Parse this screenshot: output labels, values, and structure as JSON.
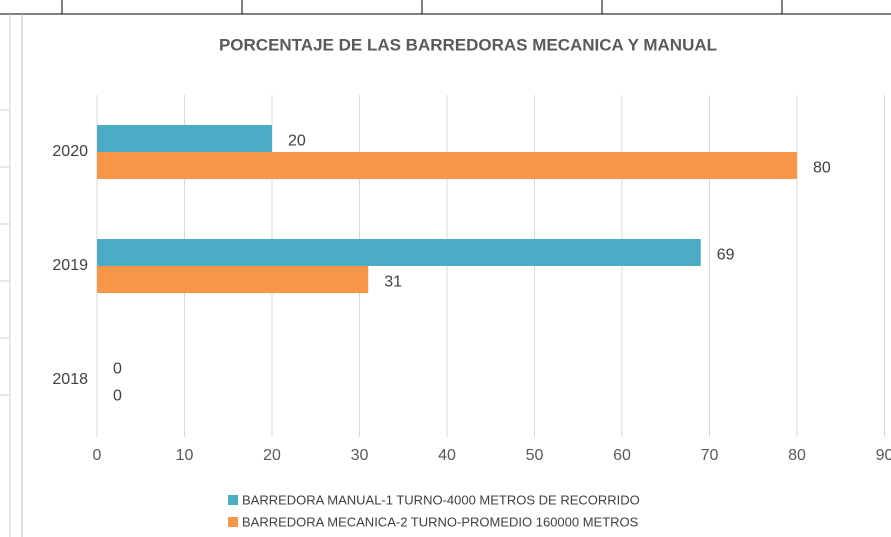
{
  "chart_data": {
    "type": "bar",
    "orientation": "horizontal",
    "title": "PORCENTAJE DE LAS BARREDORAS MECANICA Y MANUAL",
    "categories": [
      "2018",
      "2019",
      "2020"
    ],
    "series": [
      {
        "name": "BARREDORA MANUAL-1 TURNO-4000 METROS DE RECORRIDO",
        "color": "#4bacc6",
        "values": [
          0,
          69,
          20
        ]
      },
      {
        "name": "BARREDORA MECANICA-2 TURNO-PROMEDIO 160000 METROS",
        "color": "#f79646",
        "values": [
          0,
          31,
          80
        ]
      }
    ],
    "xlim": [
      0,
      90
    ],
    "xticks": [
      0,
      10,
      20,
      30,
      40,
      50,
      60,
      70,
      80,
      90
    ],
    "grid": true,
    "legend": "bottom"
  }
}
